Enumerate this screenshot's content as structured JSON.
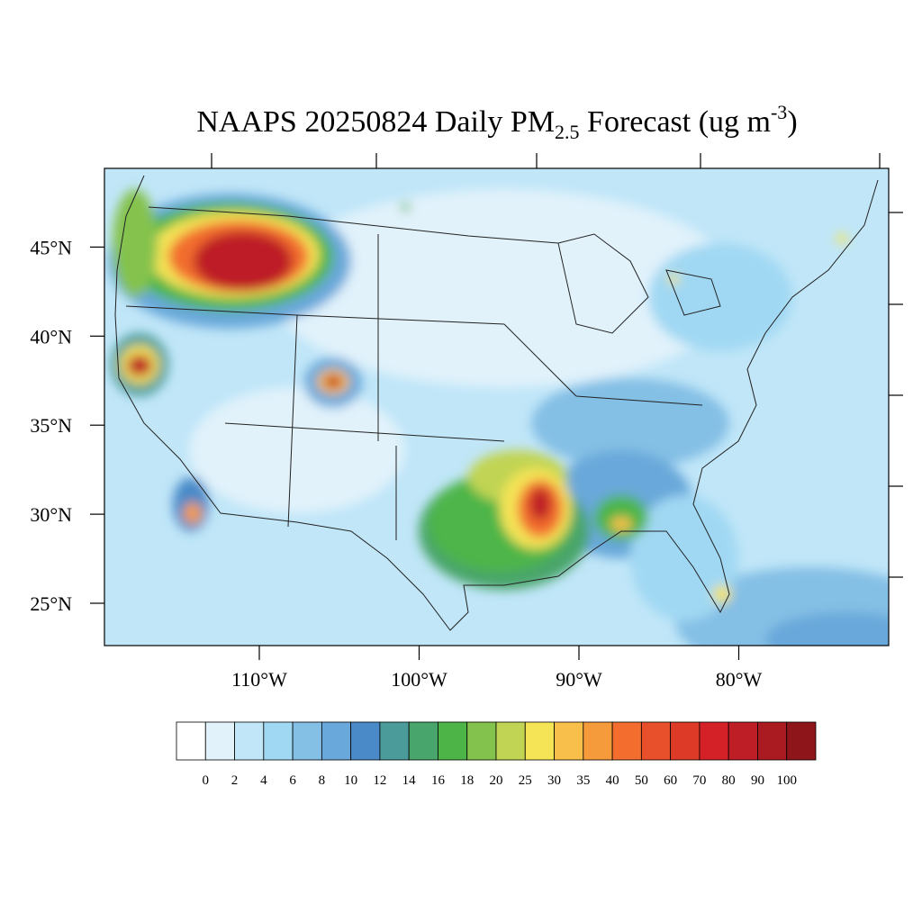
{
  "title": {
    "main": "NAAPS 20250824 Daily PM",
    "subscript": "2.5",
    "units": " Forecast (ug m",
    "superscript": "-3",
    "end": ")"
  },
  "map": {
    "lat_ticks": [
      {
        "value": 25,
        "label": "25°N"
      },
      {
        "value": 30,
        "label": "30°N"
      },
      {
        "value": 35,
        "label": "35°N"
      },
      {
        "value": 40,
        "label": "40°N"
      },
      {
        "value": 45,
        "label": "45°N"
      }
    ],
    "lon_ticks": [
      {
        "value": -110,
        "label": "110°W"
      },
      {
        "value": -100,
        "label": "100°W"
      },
      {
        "value": -90,
        "label": "90°W"
      },
      {
        "value": -80,
        "label": "80°W"
      }
    ]
  },
  "colorbar": {
    "levels": [
      0,
      2,
      4,
      6,
      8,
      10,
      12,
      14,
      16,
      18,
      20,
      25,
      30,
      35,
      40,
      50,
      60,
      70,
      80,
      90,
      100
    ],
    "colors": [
      "#ffffff",
      "#e1f2fb",
      "#c0e6f8",
      "#a0d8f3",
      "#84bfe5",
      "#69a8da",
      "#4a8ac8",
      "#4a9b9a",
      "#48a56b",
      "#4db548",
      "#84c24e",
      "#c1d453",
      "#f5e456",
      "#f8c04a",
      "#f69b3c",
      "#f26d2e",
      "#e8502b",
      "#dd3a28",
      "#d42027",
      "#be1e25",
      "#a91b21",
      "#8e1519"
    ]
  }
}
